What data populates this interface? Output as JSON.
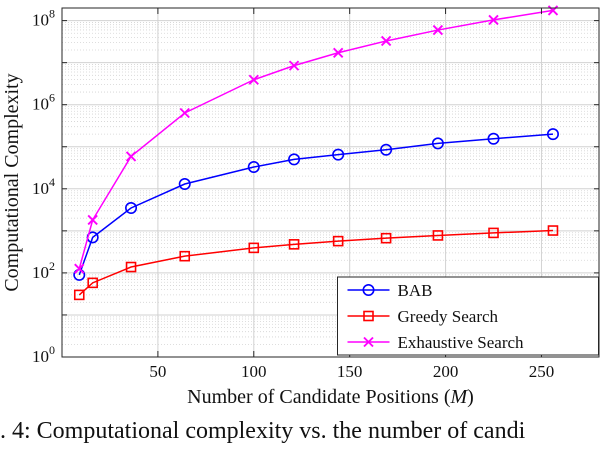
{
  "figure": {
    "caption": ". 4: Computational complexity vs. the number of candi"
  },
  "chart_data": {
    "type": "line",
    "title": "",
    "ylabel": "Computational Complexity",
    "xlabel_prefix": "Number of Candidate Positions (",
    "xlabel_var": "M",
    "xlabel_suffix": ")",
    "xlim": [
      0,
      280
    ],
    "x_ticks": [
      50,
      100,
      150,
      200,
      250
    ],
    "y_scale": "log",
    "y_exp_range": [
      0,
      8.3
    ],
    "y_tick_exponents": [
      0,
      2,
      4,
      6,
      8
    ],
    "grid": "on",
    "minor_grid": "on",
    "legend_position": "bottom-right-inside",
    "x": [
      9,
      16,
      36,
      64,
      100,
      121,
      144,
      169,
      196,
      225,
      256
    ],
    "series": [
      {
        "name": "BAB",
        "color": "#0000ff",
        "marker": "circle",
        "values": [
          90,
          700,
          3500,
          13000,
          33000,
          50000,
          65000,
          85000,
          120000,
          155000,
          200000
        ]
      },
      {
        "name": "Greedy Search",
        "color": "#ff0000",
        "marker": "square",
        "values": [
          30,
          58,
          138,
          250,
          394,
          478,
          570,
          670,
          778,
          894,
          1018
        ]
      },
      {
        "name": "Exhaustive Search",
        "color": "#ff00ff",
        "marker": "x",
        "values": [
          126,
          1820,
          58905,
          635376,
          3921225,
          8495410,
          17178876,
          32795126,
          59626385,
          103962600,
          174792640
        ]
      }
    ]
  }
}
